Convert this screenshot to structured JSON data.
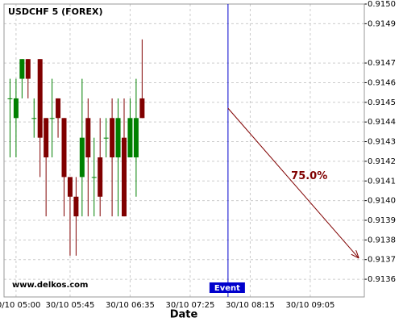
{
  "chart_data": {
    "type": "candlestick",
    "title": "USDCHF 5 (FOREX)",
    "watermark": "www.delkos.com",
    "x_label": "Date",
    "x": [
      -1,
      0,
      1,
      2,
      3,
      4,
      5,
      6,
      7,
      8,
      9,
      10,
      11,
      12,
      13,
      14,
      15,
      16,
      17,
      18,
      19,
      20,
      21
    ],
    "open": [
      0.91452,
      0.91442,
      0.91462,
      0.91472,
      0.91442,
      0.91472,
      0.91442,
      0.91442,
      0.91452,
      0.91442,
      0.91412,
      0.91402,
      0.91412,
      0.91442,
      0.91412,
      0.91422,
      0.91432,
      0.91442,
      0.91422,
      0.91432,
      0.91422,
      0.91422,
      0.91452
    ],
    "high": [
      0.91462,
      0.91462,
      0.91472,
      0.91472,
      0.91452,
      0.91472,
      0.91442,
      0.91462,
      0.91452,
      0.91442,
      0.91412,
      0.91412,
      0.91462,
      0.91452,
      0.91432,
      0.91442,
      0.91442,
      0.91452,
      0.91452,
      0.91452,
      0.91452,
      0.91462,
      0.91482
    ],
    "low": [
      0.91422,
      0.91422,
      0.91452,
      0.91452,
      0.91432,
      0.91412,
      0.91392,
      0.91422,
      0.91432,
      0.91392,
      0.91372,
      0.91372,
      0.91392,
      0.91392,
      0.91392,
      0.91392,
      0.91422,
      0.91392,
      0.91392,
      0.91392,
      0.91422,
      0.91402,
      0.91442
    ],
    "close": [
      0.91452,
      0.91452,
      0.91472,
      0.91462,
      0.91442,
      0.91432,
      0.91422,
      0.91442,
      0.91442,
      0.91412,
      0.91402,
      0.91392,
      0.91432,
      0.91422,
      0.91412,
      0.91402,
      0.91432,
      0.91422,
      0.91442,
      0.91392,
      0.91442,
      0.91442,
      0.91442
    ],
    "up_color": "#008000",
    "down_color": "#800000",
    "xlim": [
      -2,
      58
    ],
    "xticks": [
      {
        "value": 0,
        "label": "30/10 05:00"
      },
      {
        "value": 9,
        "label": "30/10 05:45"
      },
      {
        "value": 19,
        "label": "30/10 06:35"
      },
      {
        "value": 29,
        "label": "30/10 07:25"
      },
      {
        "value": 39,
        "label": "30/10 08:15"
      },
      {
        "value": 49,
        "label": "30/10 09:05"
      }
    ],
    "ylim": [
      0.91351,
      0.915
    ],
    "yticks": [
      {
        "value": 0.915,
        "label": "0.9150"
      },
      0.9149,
      0.9147,
      0.9146,
      0.9145,
      0.9144,
      0.9143,
      0.9142,
      0.9141,
      {
        "value": 0.914,
        "label": "0.9140"
      },
      0.9139,
      0.9138,
      0.9137,
      0.9136
    ],
    "grid": true,
    "event": {
      "x": 35.3,
      "label": "Event",
      "color": "#0000cc"
    },
    "forecast": {
      "x": [
        35.3,
        57
      ],
      "y": [
        0.91447,
        0.91371
      ],
      "label": "75.0%",
      "color": "#800000"
    }
  }
}
